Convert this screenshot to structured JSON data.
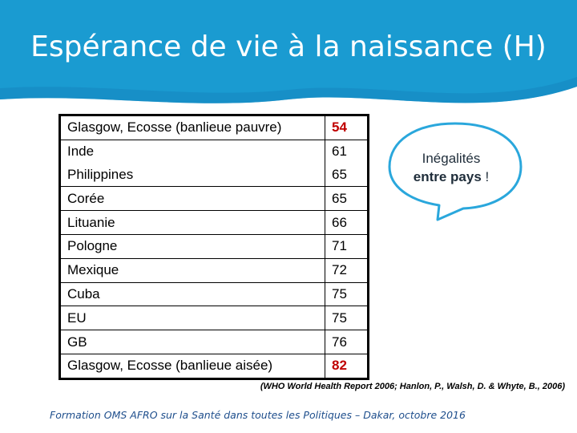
{
  "slide": {
    "title": "Espérance de vie à la naissance (H)",
    "banner_color": "#1a9bd1",
    "highlight_color": "#c00000"
  },
  "table": {
    "rows": [
      {
        "country": "Glasgow, Ecosse (banlieue pauvre)",
        "value": "54",
        "highlight": true
      },
      {
        "country": "Inde",
        "value": "61"
      },
      {
        "country": "Philippines",
        "value": "65"
      },
      {
        "country": "Corée",
        "value": "65"
      },
      {
        "country": "Lituanie",
        "value": "66"
      },
      {
        "country": "Pologne",
        "value": "71"
      },
      {
        "country": "Mexique",
        "value": "72"
      },
      {
        "country": "Cuba",
        "value": "75"
      },
      {
        "country": "EU",
        "value": "75"
      },
      {
        "country": "GB",
        "value": "76"
      },
      {
        "country": "Glasgow, Ecosse (banlieue aisée)",
        "value": "82",
        "highlight": true
      }
    ]
  },
  "callout": {
    "line1": "Inégalités",
    "line2": "entre pays",
    "line2_suffix": " !"
  },
  "source": "(WHO World Health Report 2006; Hanlon, P., Walsh, D. & Whyte, B., 2006)",
  "footer": "Formation OMS AFRO sur la Santé dans toutes les Politiques – Dakar, octobre 2016"
}
